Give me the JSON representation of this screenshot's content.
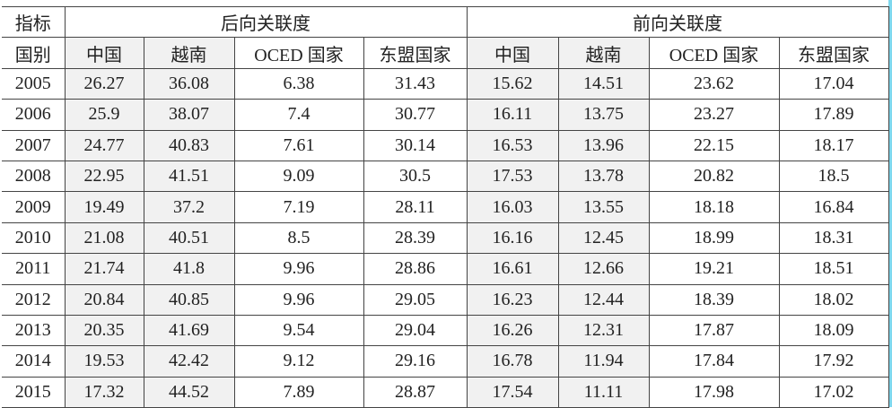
{
  "header": {
    "indicator_label": "指标",
    "country_label": "国别",
    "group_backward": "后向关联度",
    "group_forward": "前向关联度",
    "columns": [
      "中国",
      "越南",
      "OCED 国家",
      "东盟国家",
      "中国",
      "越南",
      "OCED 国家",
      "东盟国家"
    ]
  },
  "rows": [
    {
      "year": "2005",
      "values": [
        "26.27",
        "36.08",
        "6.38",
        "31.43",
        "15.62",
        "14.51",
        "23.62",
        "17.04"
      ]
    },
    {
      "year": "2006",
      "values": [
        "25.9",
        "38.07",
        "7.4",
        "30.77",
        "16.11",
        "13.75",
        "23.27",
        "17.89"
      ]
    },
    {
      "year": "2007",
      "values": [
        "24.77",
        "40.83",
        "7.61",
        "30.14",
        "16.53",
        "13.96",
        "22.15",
        "18.17"
      ]
    },
    {
      "year": "2008",
      "values": [
        "22.95",
        "41.51",
        "9.09",
        "30.5",
        "17.53",
        "13.78",
        "20.82",
        "18.5"
      ]
    },
    {
      "year": "2009",
      "values": [
        "19.49",
        "37.2",
        "7.19",
        "28.11",
        "16.03",
        "13.55",
        "18.18",
        "16.84"
      ]
    },
    {
      "year": "2010",
      "values": [
        "21.08",
        "40.51",
        "8.5",
        "28.39",
        "16.16",
        "12.45",
        "18.99",
        "18.31"
      ]
    },
    {
      "year": "2011",
      "values": [
        "21.74",
        "41.8",
        "9.96",
        "28.86",
        "16.61",
        "12.66",
        "19.21",
        "18.51"
      ]
    },
    {
      "year": "2012",
      "values": [
        "20.84",
        "40.85",
        "9.96",
        "29.05",
        "16.23",
        "12.44",
        "18.39",
        "18.02"
      ]
    },
    {
      "year": "2013",
      "values": [
        "20.35",
        "41.69",
        "9.54",
        "29.04",
        "16.26",
        "12.31",
        "17.87",
        "18.09"
      ]
    },
    {
      "year": "2014",
      "values": [
        "19.53",
        "42.42",
        "9.12",
        "29.16",
        "16.78",
        "11.94",
        "17.84",
        "17.92"
      ]
    },
    {
      "year": "2015",
      "values": [
        "17.32",
        "44.52",
        "7.89",
        "28.87",
        "17.54",
        "11.11",
        "17.98",
        "17.02"
      ]
    }
  ]
}
